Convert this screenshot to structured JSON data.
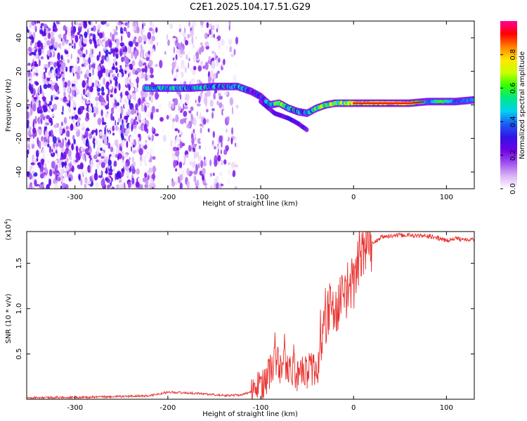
{
  "title": "C2E1.2025.104.17.51.G29",
  "chart_data": [
    {
      "type": "heatmap",
      "xlabel": "Height of straight line (km)",
      "ylabel": "Frequency (Hz)",
      "xlim": [
        -352,
        130
      ],
      "ylim": [
        -50,
        50
      ],
      "x_ticks": [
        -300,
        -200,
        -100,
        0,
        100
      ],
      "y_ticks": [
        -40,
        -20,
        0,
        20,
        40
      ],
      "colorbar": {
        "label": "Normalized spectral amplitude",
        "range": [
          0,
          1
        ],
        "ticks": [
          "0.0",
          "0.2",
          "0.4",
          "0.6",
          "0.8"
        ],
        "colors": [
          "#ffffff",
          "#d9b3f5",
          "#a050ef",
          "#6e00e6",
          "#3214e6",
          "#1e5af5",
          "#00d2f0",
          "#00e68c",
          "#32ff00",
          "#c8ff00",
          "#ffe600",
          "#ff8200",
          "#ff0000",
          "#ff0096"
        ]
      },
      "noise_region_x": [
        -352,
        -125
      ],
      "signal_track": [
        {
          "x": -225,
          "freq": 10,
          "amp": 0.5
        },
        {
          "x": -200,
          "freq": 10,
          "amp": 0.55
        },
        {
          "x": -175,
          "freq": 10,
          "amp": 0.5
        },
        {
          "x": -150,
          "freq": 11,
          "amp": 0.5
        },
        {
          "x": -125,
          "freq": 11,
          "amp": 0.55
        },
        {
          "x": -110,
          "freq": 8,
          "amp": 0.45
        },
        {
          "x": -100,
          "freq": 5,
          "amp": 0.45
        },
        {
          "x": -90,
          "freq": 0,
          "amp": 0.55
        },
        {
          "x": -80,
          "freq": 1,
          "amp": 0.8
        },
        {
          "x": -70,
          "freq": -2,
          "amp": 0.6
        },
        {
          "x": -60,
          "freq": -4,
          "amp": 0.5
        },
        {
          "x": -50,
          "freq": -5,
          "amp": 0.5
        },
        {
          "x": -40,
          "freq": -2,
          "amp": 0.7
        },
        {
          "x": -30,
          "freq": 0,
          "amp": 0.75
        },
        {
          "x": -20,
          "freq": 1,
          "amp": 0.8
        },
        {
          "x": -10,
          "freq": 1,
          "amp": 0.8
        },
        {
          "x": 0,
          "freq": 1,
          "amp": 0.9
        },
        {
          "x": 20,
          "freq": 1,
          "amp": 0.95
        },
        {
          "x": 40,
          "freq": 1,
          "amp": 1.0
        },
        {
          "x": 60,
          "freq": 1,
          "amp": 0.95
        },
        {
          "x": 80,
          "freq": 2,
          "amp": 0.5
        },
        {
          "x": 95,
          "freq": 2,
          "amp": 0.8
        },
        {
          "x": 110,
          "freq": 2,
          "amp": 0.5
        },
        {
          "x": 130,
          "freq": 3,
          "amp": 0.55
        }
      ],
      "signal_side_lobe": [
        {
          "x": -100,
          "freq": 2
        },
        {
          "x": -85,
          "freq": -5
        },
        {
          "x": -70,
          "freq": -8
        },
        {
          "x": -60,
          "freq": -11
        },
        {
          "x": -50,
          "freq": -15
        }
      ]
    },
    {
      "type": "line",
      "xlabel": "Height of straight line (km)",
      "ylabel": "SNR (10 * v/v)",
      "y_multiplier": "(x10",
      "y_multiplier_exp": "4",
      "y_multiplier_close": ")",
      "xlim": [
        -352,
        130
      ],
      "ylim": [
        0,
        1.85
      ],
      "x_ticks": [
        -300,
        -200,
        -100,
        0,
        100
      ],
      "y_ticks": [
        0.5,
        1.0,
        1.5
      ],
      "y_tick_labels": [
        "0.5",
        "1.0",
        "1.5"
      ],
      "color": "#e8312e",
      "series": [
        {
          "x": [
            -352,
            -300,
            -250,
            -220,
            -200,
            -180,
            -160,
            -140,
            -120,
            -110,
            -100,
            -90,
            -85,
            -80,
            -75,
            -70,
            -65,
            -60,
            -55,
            -50,
            -45,
            -40,
            -35,
            -30,
            -25,
            -20,
            -15,
            -10,
            -5,
            0,
            5,
            10,
            15,
            20,
            25,
            30,
            40,
            50,
            60,
            70,
            80,
            90,
            100,
            110,
            120,
            130
          ],
          "y": [
            0.02,
            0.02,
            0.03,
            0.04,
            0.08,
            0.07,
            0.06,
            0.04,
            0.05,
            0.08,
            0.15,
            0.3,
            0.45,
            0.35,
            0.4,
            0.3,
            0.35,
            0.25,
            0.4,
            0.3,
            0.35,
            0.25,
            0.6,
            0.85,
            1.05,
            0.9,
            1.1,
            1.15,
            1.25,
            1.3,
            1.45,
            1.6,
            1.65,
            1.72,
            1.75,
            1.79,
            1.8,
            1.81,
            1.81,
            1.8,
            1.8,
            1.78,
            1.75,
            1.77,
            1.77,
            1.76
          ]
        }
      ]
    }
  ]
}
